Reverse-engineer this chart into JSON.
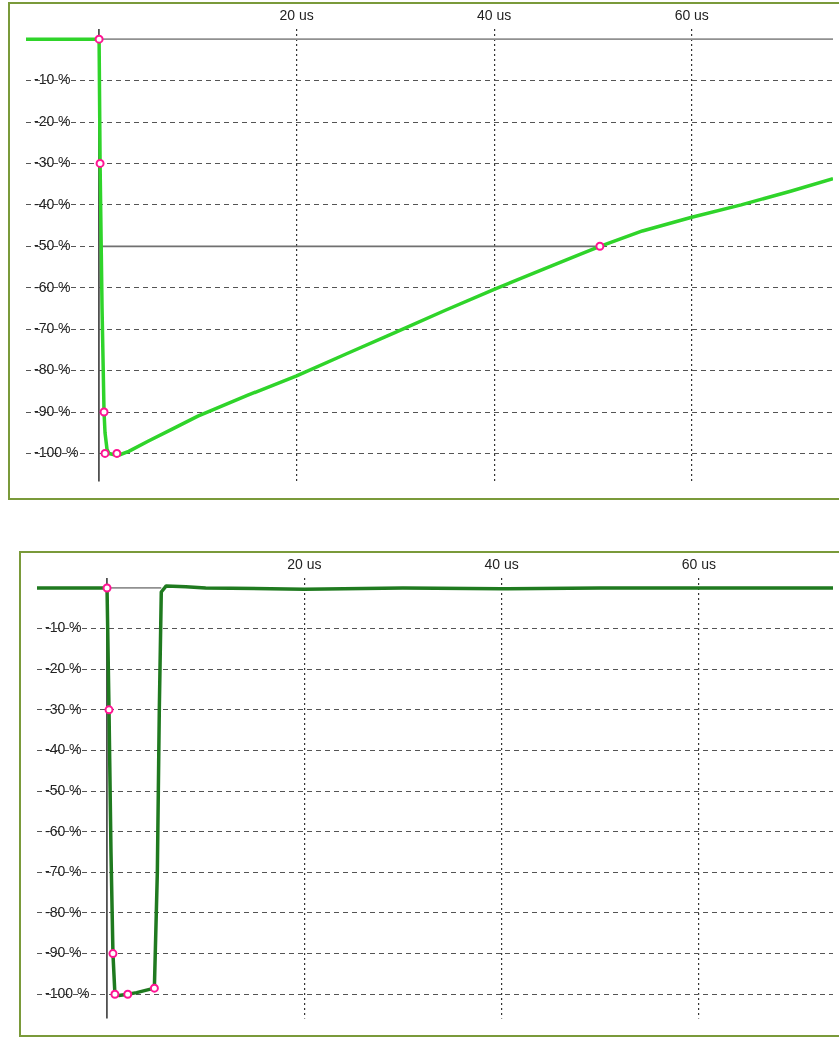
{
  "chart_data": [
    {
      "type": "line",
      "x": [
        -7.4,
        -3,
        0,
        0.1,
        0.3,
        0.5,
        0.6,
        0.8,
        1.0,
        1.9,
        3,
        5,
        7.5,
        10,
        15,
        20,
        25,
        30,
        35,
        40,
        45,
        50.7,
        55,
        60,
        65,
        70,
        74.3
      ],
      "series": [
        {
          "color": "#2fd42a",
          "values": [
            0,
            0,
            0,
            -30,
            -65,
            -90,
            -95,
            -99,
            -100,
            -100.5,
            -99.5,
            -97,
            -94,
            -91,
            -86,
            -81.3,
            -76,
            -70.8,
            -65.5,
            -60.4,
            -55.5,
            -50,
            -46.3,
            -43,
            -40,
            -36.7,
            -33.7
          ]
        },
        {
          "type": "line",
          "color": "#707070",
          "x": [
            0,
            50.7
          ],
          "values": [
            -50,
            -50
          ]
        },
        {
          "type": "line",
          "color": "#909090",
          "x": [
            0,
            74.3
          ],
          "values": [
            0,
            0
          ]
        },
        {
          "type": "scatter",
          "color": "#ff1493",
          "marker": "circle",
          "x": [
            0,
            0.1,
            0.5,
            0.6,
            1.8,
            50.7
          ],
          "values": [
            0,
            -30,
            -90,
            -100,
            -100,
            -50
          ]
        }
      ],
      "xlim": [
        -7.4,
        74.3
      ],
      "ylim": [
        -106.8,
        2.5
      ],
      "xticks": [
        {
          "value": 0,
          "label": null
        },
        {
          "value": 20,
          "label": "20 us"
        },
        {
          "value": 40,
          "label": "40 us"
        },
        {
          "value": 60,
          "label": "60 us"
        }
      ],
      "yticks": [
        {
          "value": -10,
          "label": "-10 %"
        },
        {
          "value": -20,
          "label": "-20 %"
        },
        {
          "value": -30,
          "label": "-30 %"
        },
        {
          "value": -40,
          "label": "-40 %"
        },
        {
          "value": -50,
          "label": "-50 %"
        },
        {
          "value": -60,
          "label": "-60 %"
        },
        {
          "value": -70,
          "label": "-70 %"
        },
        {
          "value": -80,
          "label": "-80 %"
        },
        {
          "value": -90,
          "label": "-90 %"
        },
        {
          "value": -100,
          "label": "-100 %"
        }
      ],
      "grid": true,
      "legend": false,
      "marker": "none"
    },
    {
      "type": "line",
      "x": [
        -7.1,
        -3,
        0,
        0.2,
        0.4,
        0.6,
        0.8,
        1.2,
        2.1,
        3,
        4,
        4.8,
        5.1,
        5.3,
        5.5,
        6,
        8,
        10,
        20,
        30,
        40,
        50,
        60,
        73.6
      ],
      "series": [
        {
          "color": "#1f7a1f",
          "values": [
            0,
            0,
            0,
            -30,
            -65,
            -90,
            -100,
            -100.3,
            -100,
            -99.6,
            -99,
            -98.5,
            -70,
            -30,
            -1,
            0.5,
            0.3,
            0,
            -0.3,
            0,
            -0.2,
            0,
            0,
            0
          ]
        },
        {
          "type": "line",
          "color": "#909090",
          "x": [
            0,
            5.5
          ],
          "values": [
            0,
            0
          ]
        },
        {
          "type": "scatter",
          "color": "#ff1493",
          "marker": "circle",
          "x": [
            0,
            0.2,
            0.6,
            0.8,
            2.1,
            4.8
          ],
          "values": [
            0,
            -30,
            -90,
            -100,
            -100,
            -98.5
          ]
        }
      ],
      "xlim": [
        -7.1,
        73.6
      ],
      "ylim": [
        -106,
        2.5
      ],
      "xticks": [
        {
          "value": 0,
          "label": null
        },
        {
          "value": 20,
          "label": "20 us"
        },
        {
          "value": 40,
          "label": "40 us"
        },
        {
          "value": 60,
          "label": "60 us"
        }
      ],
      "yticks": [
        {
          "value": -10,
          "label": "-10 %"
        },
        {
          "value": -20,
          "label": "-20 %"
        },
        {
          "value": -30,
          "label": "-30 %"
        },
        {
          "value": -40,
          "label": "-40 %"
        },
        {
          "value": -50,
          "label": "-50 %"
        },
        {
          "value": -60,
          "label": "-60 %"
        },
        {
          "value": -70,
          "label": "-70 %"
        },
        {
          "value": -80,
          "label": "-80 %"
        },
        {
          "value": -90,
          "label": "-90 %"
        },
        {
          "value": -100,
          "label": "-100 %"
        }
      ],
      "grid": true,
      "legend": false,
      "marker": "none"
    }
  ]
}
